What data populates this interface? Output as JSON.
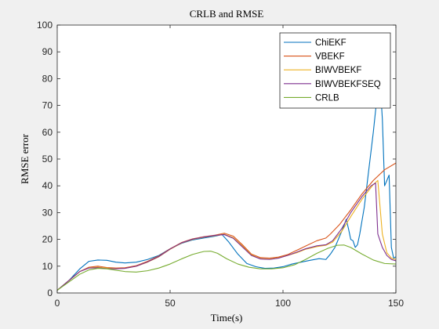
{
  "chart_data": {
    "type": "line",
    "title": "CRLB and RMSE",
    "xlabel": "Time(s)",
    "ylabel": "RMSE error",
    "xlim": [
      0,
      150
    ],
    "ylim": [
      0,
      100
    ],
    "xticks": [
      0,
      50,
      100,
      150
    ],
    "yticks": [
      0,
      10,
      20,
      30,
      40,
      50,
      60,
      70,
      80,
      90,
      100
    ],
    "grid": false,
    "legend_position": "top-right",
    "series": [
      {
        "name": "ChiEKF",
        "color": "#0072bd",
        "points": [
          [
            0,
            1
          ],
          [
            5,
            4.5
          ],
          [
            10,
            9
          ],
          [
            14,
            11.8
          ],
          [
            18,
            12.3
          ],
          [
            22,
            12.2
          ],
          [
            26,
            11.5
          ],
          [
            30,
            11.2
          ],
          [
            35,
            11.5
          ],
          [
            40,
            12.5
          ],
          [
            45,
            14
          ],
          [
            50,
            16.5
          ],
          [
            55,
            18.5
          ],
          [
            60,
            19.8
          ],
          [
            65,
            20.5
          ],
          [
            70,
            21.2
          ],
          [
            73,
            21.8
          ],
          [
            76,
            19
          ],
          [
            80,
            14.5
          ],
          [
            84,
            11
          ],
          [
            88,
            9.8
          ],
          [
            92,
            9.2
          ],
          [
            96,
            9.3
          ],
          [
            100,
            9.8
          ],
          [
            104,
            10.8
          ],
          [
            108,
            11.5
          ],
          [
            112,
            12.2
          ],
          [
            116,
            12.8
          ],
          [
            119,
            12.5
          ],
          [
            121,
            14.5
          ],
          [
            123,
            17
          ],
          [
            125,
            21
          ],
          [
            127,
            25
          ],
          [
            128,
            27.5
          ],
          [
            129,
            24
          ],
          [
            130,
            20
          ],
          [
            131,
            19.5
          ],
          [
            132,
            17
          ],
          [
            133,
            18
          ],
          [
            134,
            22
          ],
          [
            136,
            32
          ],
          [
            138,
            46
          ],
          [
            140,
            60
          ],
          [
            141,
            68
          ],
          [
            142,
            76
          ],
          [
            143,
            79
          ],
          [
            144,
            65
          ],
          [
            145,
            40
          ],
          [
            146,
            42
          ],
          [
            147,
            44
          ],
          [
            148,
            17
          ],
          [
            149,
            13
          ],
          [
            150,
            13.5
          ]
        ]
      },
      {
        "name": "VBEKF",
        "color": "#d95319",
        "points": [
          [
            0,
            1
          ],
          [
            5,
            4.5
          ],
          [
            10,
            8
          ],
          [
            14,
            9.6
          ],
          [
            18,
            10
          ],
          [
            22,
            9.5
          ],
          [
            26,
            9.3
          ],
          [
            30,
            9.4
          ],
          [
            35,
            10.2
          ],
          [
            40,
            11.8
          ],
          [
            45,
            13.8
          ],
          [
            50,
            16.5
          ],
          [
            55,
            18.8
          ],
          [
            60,
            20.2
          ],
          [
            65,
            21
          ],
          [
            70,
            21.6
          ],
          [
            74,
            22.3
          ],
          [
            78,
            21.2
          ],
          [
            82,
            18
          ],
          [
            86,
            14.5
          ],
          [
            90,
            13.2
          ],
          [
            94,
            13
          ],
          [
            98,
            13.4
          ],
          [
            102,
            14.3
          ],
          [
            105,
            15.5
          ],
          [
            110,
            17.5
          ],
          [
            115,
            19.5
          ],
          [
            119,
            20.5
          ],
          [
            121,
            22
          ],
          [
            125,
            25.5
          ],
          [
            130,
            31
          ],
          [
            135,
            37
          ],
          [
            140,
            42
          ],
          [
            145,
            46
          ],
          [
            150,
            48.5
          ]
        ]
      },
      {
        "name": "BIWVBEKF",
        "color": "#edb120",
        "points": [
          [
            0,
            1
          ],
          [
            5,
            4.5
          ],
          [
            10,
            8
          ],
          [
            14,
            9.4
          ],
          [
            18,
            9.6
          ],
          [
            22,
            9.3
          ],
          [
            26,
            9.1
          ],
          [
            30,
            9.2
          ],
          [
            35,
            10
          ],
          [
            40,
            11.5
          ],
          [
            45,
            13.5
          ],
          [
            50,
            16.3
          ],
          [
            55,
            18.6
          ],
          [
            60,
            20
          ],
          [
            65,
            20.8
          ],
          [
            70,
            21.4
          ],
          [
            74,
            21.9
          ],
          [
            78,
            20.6
          ],
          [
            82,
            17.5
          ],
          [
            86,
            14.2
          ],
          [
            90,
            12.8
          ],
          [
            94,
            12.6
          ],
          [
            98,
            13.1
          ],
          [
            102,
            14
          ],
          [
            106,
            15
          ],
          [
            110,
            16.3
          ],
          [
            115,
            17.3
          ],
          [
            119,
            17.8
          ],
          [
            122,
            19
          ],
          [
            126,
            23
          ],
          [
            130,
            28.5
          ],
          [
            135,
            35
          ],
          [
            140,
            40.5
          ],
          [
            142,
            42
          ],
          [
            143,
            32
          ],
          [
            144,
            22
          ],
          [
            146,
            15
          ],
          [
            148,
            13
          ],
          [
            150,
            12.5
          ]
        ]
      },
      {
        "name": "BIWVBEKFSEQ",
        "color": "#7e2f8e",
        "points": [
          [
            0,
            1
          ],
          [
            5,
            4.5
          ],
          [
            10,
            8
          ],
          [
            14,
            9.3
          ],
          [
            18,
            9.4
          ],
          [
            22,
            9.1
          ],
          [
            26,
            9
          ],
          [
            30,
            9.2
          ],
          [
            35,
            10
          ],
          [
            40,
            11.6
          ],
          [
            45,
            13.6
          ],
          [
            50,
            16.4
          ],
          [
            55,
            18.7
          ],
          [
            60,
            20.1
          ],
          [
            65,
            20.9
          ],
          [
            70,
            21.5
          ],
          [
            74,
            21.8
          ],
          [
            78,
            20.4
          ],
          [
            82,
            17.2
          ],
          [
            86,
            14
          ],
          [
            90,
            12.7
          ],
          [
            94,
            12.5
          ],
          [
            98,
            13
          ],
          [
            102,
            14
          ],
          [
            106,
            15.2
          ],
          [
            110,
            16.5
          ],
          [
            115,
            17.6
          ],
          [
            119,
            18
          ],
          [
            122,
            19.5
          ],
          [
            126,
            24
          ],
          [
            130,
            30
          ],
          [
            135,
            36
          ],
          [
            139,
            40
          ],
          [
            141,
            41
          ],
          [
            142,
            22
          ],
          [
            144,
            17
          ],
          [
            146,
            14
          ],
          [
            148,
            12.5
          ],
          [
            150,
            12
          ]
        ]
      },
      {
        "name": "CRLB",
        "color": "#77ac30",
        "points": [
          [
            0,
            1
          ],
          [
            5,
            4
          ],
          [
            10,
            7
          ],
          [
            14,
            8.6
          ],
          [
            18,
            9.2
          ],
          [
            22,
            9
          ],
          [
            26,
            8.5
          ],
          [
            30,
            8
          ],
          [
            35,
            7.8
          ],
          [
            40,
            8.3
          ],
          [
            45,
            9.3
          ],
          [
            50,
            10.8
          ],
          [
            55,
            12.7
          ],
          [
            60,
            14.4
          ],
          [
            65,
            15.5
          ],
          [
            68,
            15.6
          ],
          [
            71,
            14.8
          ],
          [
            75,
            12.8
          ],
          [
            80,
            10.8
          ],
          [
            85,
            9.6
          ],
          [
            90,
            9
          ],
          [
            95,
            9
          ],
          [
            100,
            9.4
          ],
          [
            105,
            10.5
          ],
          [
            110,
            12.5
          ],
          [
            115,
            14.8
          ],
          [
            120,
            16.7
          ],
          [
            124,
            17.8
          ],
          [
            127,
            17.9
          ],
          [
            130,
            17
          ],
          [
            135,
            14.5
          ],
          [
            140,
            12.3
          ],
          [
            145,
            11
          ],
          [
            150,
            10.8
          ]
        ]
      }
    ]
  }
}
